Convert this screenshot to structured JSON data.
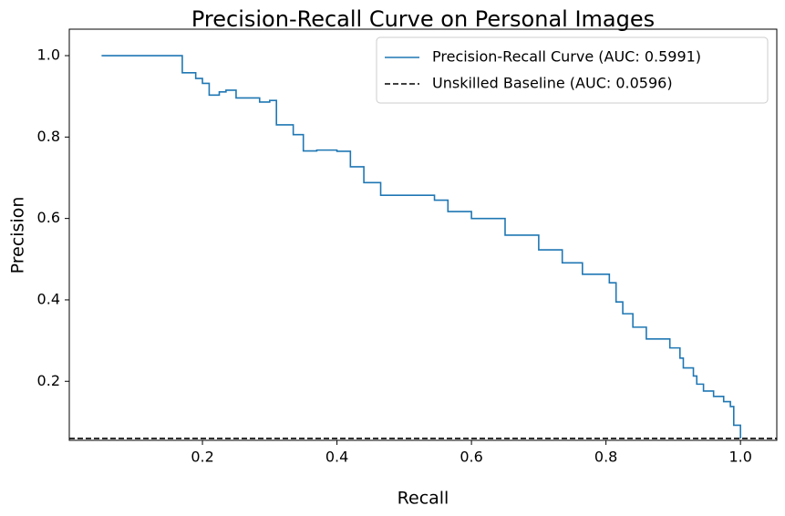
{
  "chart_data": {
    "type": "step-line",
    "title": "Precision-Recall Curve on Personal Images",
    "x_label": "Recall",
    "y_label": "Precision",
    "series": [
      {
        "name": "Precision-Recall Curve (AUC: 0.5991)",
        "color": "#1f77b4",
        "x": [
          0.05,
          0.17,
          0.19,
          0.2,
          0.21,
          0.225,
          0.235,
          0.25,
          0.285,
          0.3,
          0.31,
          0.335,
          0.35,
          0.37,
          0.4,
          0.42,
          0.44,
          0.465,
          0.545,
          0.565,
          0.6,
          0.65,
          0.7,
          0.735,
          0.765,
          0.805,
          0.815,
          0.825,
          0.84,
          0.86,
          0.895,
          0.91,
          0.915,
          0.93,
          0.935,
          0.945,
          0.96,
          0.975,
          0.985,
          0.99,
          1.0
        ],
        "values": [
          1.0,
          0.958,
          0.944,
          0.932,
          0.903,
          0.911,
          0.915,
          0.896,
          0.886,
          0.89,
          0.83,
          0.806,
          0.766,
          0.768,
          0.765,
          0.727,
          0.688,
          0.657,
          0.645,
          0.617,
          0.6,
          0.559,
          0.523,
          0.491,
          0.463,
          0.442,
          0.395,
          0.366,
          0.333,
          0.304,
          0.282,
          0.257,
          0.233,
          0.213,
          0.193,
          0.176,
          0.163,
          0.15,
          0.138,
          0.092,
          0.0596
        ]
      }
    ],
    "baseline": {
      "name": "Unskilled Baseline (AUC: 0.0596)",
      "value": 0.0596,
      "color": "#000000",
      "style": "dashed"
    },
    "xlim": [
      0.002,
      1.054
    ],
    "ylim": [
      0.055,
      1.065
    ],
    "xticks": [
      0.2,
      0.4,
      0.6,
      0.8,
      {
        "value": 1,
        "label": "1.0"
      }
    ],
    "yticks": [
      0.2,
      0.4,
      0.6,
      0.8,
      {
        "value": 1,
        "label": "1.0"
      }
    ],
    "legend": "upper-right"
  }
}
